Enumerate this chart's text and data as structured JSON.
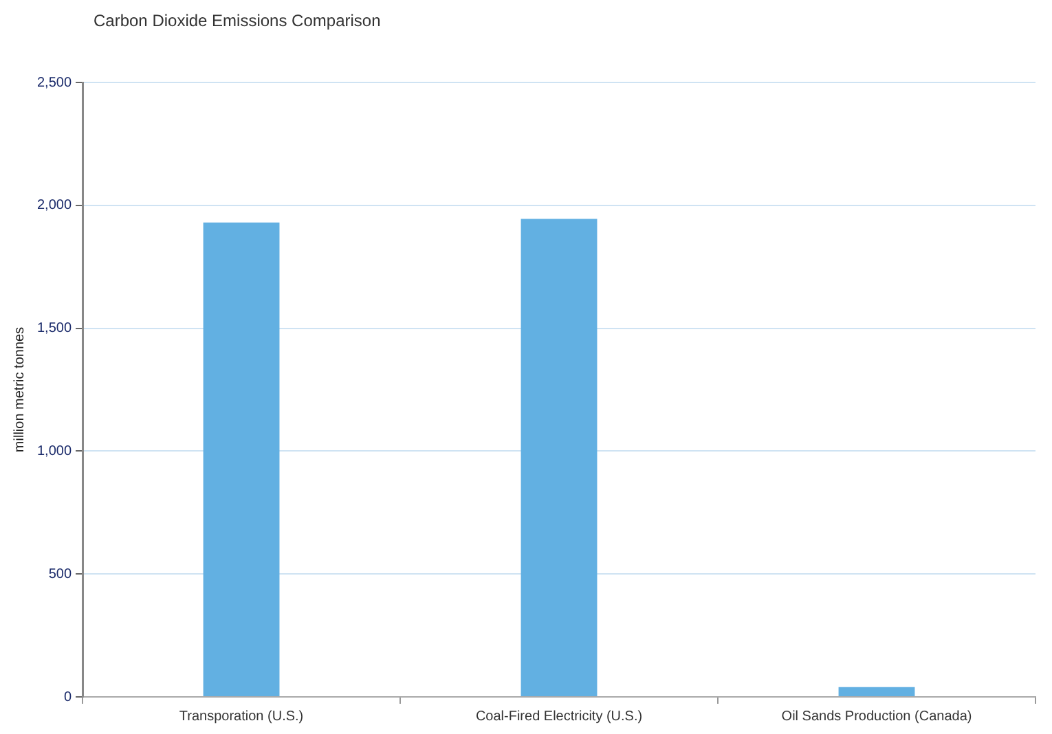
{
  "chart_data": {
    "type": "bar",
    "title": "Carbon Dioxide Emissions  Comparison",
    "ylabel": "million metric tonnes",
    "categories": [
      "Transporation (U.S.)",
      "Coal-Fired Electricity (U.S.)",
      "Oil Sands Production (Canada)"
    ],
    "values": [
      1930,
      1945,
      40
    ],
    "color": "#62b0e2",
    "ylim": [
      0,
      2500
    ],
    "yticks": [
      {
        "value": 0,
        "label": "0"
      },
      {
        "value": 500,
        "label": "500"
      },
      {
        "value": 1000,
        "label": "1,000"
      },
      {
        "value": 1500,
        "label": "1,500"
      },
      {
        "value": 2000,
        "label": "2,000"
      },
      {
        "value": 2500,
        "label": "2,500"
      }
    ],
    "grid": "y",
    "legend": false
  }
}
